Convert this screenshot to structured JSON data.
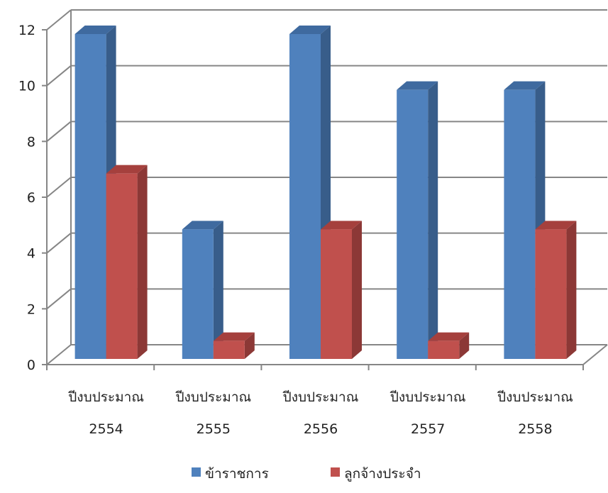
{
  "chart_data": {
    "type": "bar",
    "style": "3d-clustered-column",
    "categories": [
      [
        "ปีงบประมาณ",
        "2554"
      ],
      [
        "ปีงบประมาณ",
        "2555"
      ],
      [
        "ปีงบประมาณ",
        "2556"
      ],
      [
        "ปีงบประมาณ",
        "2557"
      ],
      [
        "ปีงบประมาณ",
        "2558"
      ]
    ],
    "series": [
      {
        "name": "ข้าราชการ",
        "values": [
          12,
          5,
          12,
          10,
          10
        ],
        "color": "#4f81bd",
        "side_color": "#385d8a",
        "top_color": "#3f6a9f"
      },
      {
        "name": "ลูกจ้างประจำ",
        "values": [
          7,
          1,
          5,
          1,
          5
        ],
        "color": "#c0504d",
        "side_color": "#8c3836",
        "top_color": "#a5403d"
      }
    ],
    "ylim": [
      0,
      12
    ],
    "yticks": [
      0,
      2,
      4,
      6,
      8,
      10,
      12
    ],
    "grid": true,
    "legend": "bottom",
    "gridline_color": "#868686"
  }
}
